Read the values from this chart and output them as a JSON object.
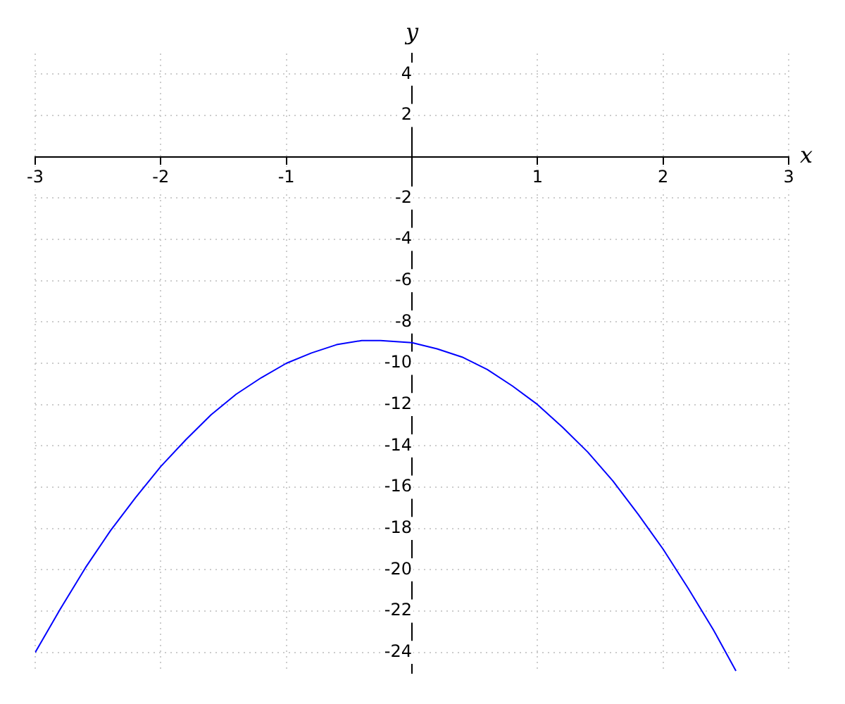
{
  "chart_data": {
    "type": "line",
    "xlabel": "x",
    "ylabel": "y",
    "xlim": [
      -3,
      3
    ],
    "ylim": [
      -25,
      5
    ],
    "xticks": [
      -3,
      -2,
      -1,
      1,
      2,
      3
    ],
    "yticks": [
      -24,
      -22,
      -20,
      -18,
      -16,
      -14,
      -12,
      -10,
      -8,
      -6,
      -4,
      -2,
      2,
      4
    ],
    "grid": true,
    "legend": false,
    "marker": "none",
    "line_style": "solid",
    "series": [
      {
        "color": "#0000ff",
        "x": [
          -3,
          -2.8,
          -2.6,
          -2.4,
          -2.2,
          -2,
          -1.8,
          -1.6,
          -1.4,
          -1.2,
          -1,
          -0.8,
          -0.6,
          -0.4,
          -0.25,
          0,
          0.2,
          0.4,
          0.6,
          0.8,
          1,
          1.2,
          1.4,
          1.6,
          1.8,
          2,
          2.2,
          2.4,
          2.58
        ],
        "values": [
          -24,
          -21.9,
          -19.9,
          -18.1,
          -16.5,
          -15,
          -13.7,
          -12.5,
          -11.5,
          -10.7,
          -10,
          -9.5,
          -9.1,
          -8.9,
          -8.9,
          -9,
          -9.3,
          -9.7,
          -10.3,
          -11.1,
          -12,
          -13.1,
          -14.3,
          -15.7,
          -17.3,
          -19,
          -20.9,
          -22.9,
          -24.9
        ]
      }
    ]
  }
}
